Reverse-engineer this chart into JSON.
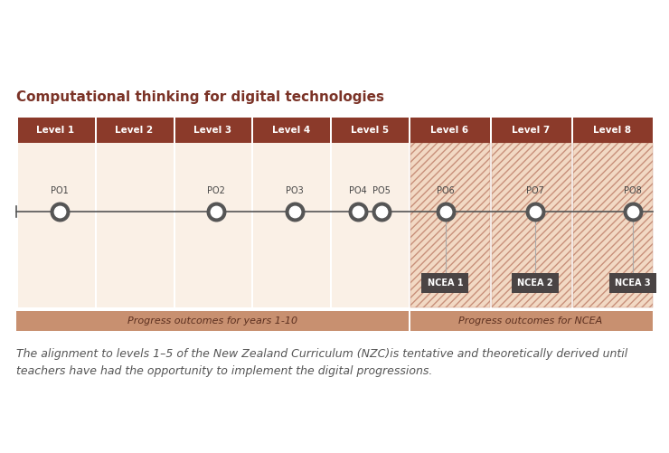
{
  "title": "Computational thinking for digital technologies",
  "title_color": "#7B3327",
  "title_fontsize": 11,
  "bg_color": "#FFFFFF",
  "levels": [
    "Level 1",
    "Level 2",
    "Level 3",
    "Level 4",
    "Level 5",
    "Level 6",
    "Level 7",
    "Level 8"
  ],
  "header_bg": "#8B3A2A",
  "header_text_color": "#FFFFFF",
  "cell_bg_plain": "#FAF0E6",
  "cell_bg_hatched": "#F2D9C4",
  "hatch_color": "#C8907A",
  "po_labels": [
    "PO1",
    "PO2",
    "PO3",
    "PO4",
    "PO5",
    "PO6",
    "PO7",
    "PO8"
  ],
  "ncea_labels": [
    "NCEA 1",
    "NCEA 2",
    "NCEA 3"
  ],
  "ncea_bg": "#4A4444",
  "ncea_text_color": "#FFFFFF",
  "line_color": "#555555",
  "dot_color": "#555555",
  "footer_left_bg": "#C89070",
  "footer_right_bg": "#C89070",
  "footer_left_text": "Progress outcomes for years 1-10",
  "footer_right_text": "Progress outcomes for NCEA",
  "footer_text_color": "#5C3020",
  "footnote": "The alignment to levels 1–5 of the New Zealand Curriculum (NZC)is tentative and theoretically derived until\nteachers have had the opportunity to implement the digital progressions.",
  "footnote_color": "#555555",
  "footnote_fontsize": 9
}
